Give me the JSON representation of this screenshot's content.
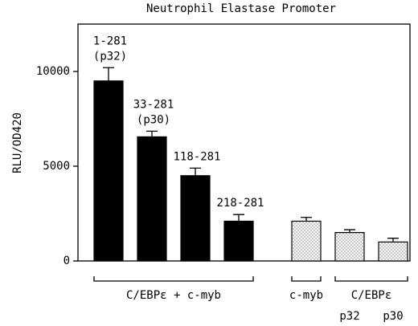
{
  "chart_data": {
    "type": "bar",
    "title": "Neutrophil Elastase Promoter",
    "y_label": "RLU/OD420",
    "categories": [
      [
        "1-281",
        "(p32)"
      ],
      [
        "33-281",
        "(p30)"
      ],
      [
        "118-281"
      ],
      [
        "218-281"
      ],
      null,
      [
        "p32"
      ],
      [
        "p30"
      ]
    ],
    "values": [
      9500,
      6550,
      4500,
      2100,
      2100,
      1500,
      1000
    ],
    "errors": [
      700,
      300,
      400,
      350,
      200,
      150,
      200
    ],
    "bar_fills": [
      "solid",
      "solid",
      "solid",
      "solid",
      "dotted",
      "dotted",
      "dotted"
    ],
    "groups": [
      {
        "label": "C/EBPε + c-myb",
        "size": 4
      },
      {
        "label": "c-myb",
        "size": 1
      },
      {
        "label": "C/EBPε",
        "size": 2
      }
    ],
    "ylim": [
      0,
      12500
    ],
    "yticks": [
      0,
      5000,
      10000
    ]
  }
}
